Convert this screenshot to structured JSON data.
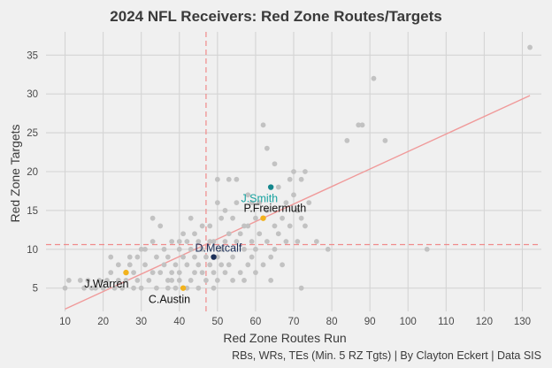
{
  "chart_data": {
    "type": "scatter",
    "title": "2024 NFL Receivers: Red Zone Routes/Targets",
    "xlabel": "Red Zone Routes Run",
    "ylabel": "Red Zone Targets",
    "caption": "RBs, WRs, TEs (Min. 5 RZ Tgts) | By Clayton Eckert | Data SIS",
    "xlim": [
      5,
      135
    ],
    "ylim": [
      2,
      38
    ],
    "xticks": [
      10,
      20,
      30,
      40,
      50,
      60,
      70,
      80,
      90,
      100,
      110,
      120,
      130
    ],
    "yticks": [
      5,
      10,
      15,
      20,
      25,
      30,
      35
    ],
    "grid": true,
    "colors": {
      "background": "#f0f0f0",
      "points": "#c2c2c2",
      "trend": "#f09a9a",
      "reference": "#f08a8a"
    },
    "reference_lines": {
      "x": 47,
      "y": 10.6
    },
    "trendline": {
      "x": [
        10,
        132
      ],
      "y": [
        2.3,
        29.8
      ]
    },
    "points": [
      [
        10,
        5
      ],
      [
        11,
        6
      ],
      [
        14,
        6
      ],
      [
        15,
        5
      ],
      [
        16,
        6
      ],
      [
        17,
        5
      ],
      [
        18,
        5
      ],
      [
        19,
        6
      ],
      [
        20,
        5
      ],
      [
        21,
        6
      ],
      [
        22,
        9
      ],
      [
        22,
        7
      ],
      [
        23,
        5
      ],
      [
        24,
        6
      ],
      [
        24,
        8
      ],
      [
        25,
        5
      ],
      [
        26,
        6
      ],
      [
        27,
        8
      ],
      [
        27,
        9
      ],
      [
        28,
        5
      ],
      [
        28,
        7
      ],
      [
        29,
        6
      ],
      [
        29,
        9
      ],
      [
        30,
        5
      ],
      [
        30,
        10
      ],
      [
        31,
        10
      ],
      [
        31,
        8
      ],
      [
        32,
        6
      ],
      [
        33,
        7
      ],
      [
        33,
        11
      ],
      [
        33,
        14
      ],
      [
        34,
        9
      ],
      [
        34,
        5
      ],
      [
        35,
        13
      ],
      [
        35,
        7
      ],
      [
        36,
        8
      ],
      [
        36,
        10
      ],
      [
        37,
        5
      ],
      [
        37,
        6
      ],
      [
        37,
        9
      ],
      [
        38,
        7
      ],
      [
        38,
        11
      ],
      [
        38,
        6
      ],
      [
        39,
        5
      ],
      [
        39,
        8
      ],
      [
        40,
        10
      ],
      [
        40,
        11
      ],
      [
        40,
        7
      ],
      [
        40,
        6
      ],
      [
        41,
        9
      ],
      [
        41,
        12
      ],
      [
        42,
        5
      ],
      [
        42,
        11
      ],
      [
        42,
        8
      ],
      [
        43,
        14
      ],
      [
        43,
        10
      ],
      [
        43,
        6
      ],
      [
        44,
        7
      ],
      [
        44,
        9
      ],
      [
        44,
        12
      ],
      [
        45,
        8
      ],
      [
        45,
        11
      ],
      [
        45,
        5
      ],
      [
        46,
        10
      ],
      [
        46,
        7
      ],
      [
        46,
        13
      ],
      [
        47,
        6
      ],
      [
        47,
        9
      ],
      [
        48,
        8
      ],
      [
        48,
        13
      ],
      [
        48,
        11
      ],
      [
        49,
        11
      ],
      [
        49,
        7
      ],
      [
        49,
        5
      ],
      [
        50,
        16
      ],
      [
        50,
        19
      ],
      [
        50,
        9
      ],
      [
        50,
        6
      ],
      [
        51,
        14
      ],
      [
        51,
        10
      ],
      [
        51,
        8
      ],
      [
        52,
        7
      ],
      [
        52,
        15
      ],
      [
        52,
        11
      ],
      [
        53,
        12
      ],
      [
        53,
        19
      ],
      [
        53,
        8
      ],
      [
        54,
        9
      ],
      [
        54,
        6
      ],
      [
        54,
        14
      ],
      [
        55,
        19
      ],
      [
        55,
        16
      ],
      [
        55,
        11
      ],
      [
        56,
        12
      ],
      [
        56,
        7
      ],
      [
        57,
        13
      ],
      [
        57,
        10
      ],
      [
        57,
        6
      ],
      [
        58,
        8
      ],
      [
        58,
        13
      ],
      [
        58,
        17
      ],
      [
        59,
        9
      ],
      [
        59,
        16
      ],
      [
        59,
        11
      ],
      [
        60,
        10
      ],
      [
        60,
        14
      ],
      [
        60,
        7
      ],
      [
        61,
        12
      ],
      [
        61,
        16
      ],
      [
        62,
        26
      ],
      [
        62,
        8
      ],
      [
        63,
        23
      ],
      [
        63,
        11
      ],
      [
        63,
        15
      ],
      [
        64,
        6
      ],
      [
        64,
        9
      ],
      [
        65,
        21
      ],
      [
        65,
        13
      ],
      [
        65,
        10
      ],
      [
        66,
        12
      ],
      [
        66,
        18
      ],
      [
        67,
        8
      ],
      [
        67,
        14
      ],
      [
        68,
        16
      ],
      [
        68,
        11
      ],
      [
        69,
        19
      ],
      [
        69,
        13
      ],
      [
        70,
        20
      ],
      [
        70,
        17
      ],
      [
        71,
        15
      ],
      [
        71,
        11
      ],
      [
        72,
        5
      ],
      [
        72,
        14
      ],
      [
        72,
        19
      ],
      [
        73,
        13
      ],
      [
        73,
        20
      ],
      [
        74,
        16
      ],
      [
        76,
        11
      ],
      [
        79,
        10
      ],
      [
        84,
        24
      ],
      [
        87,
        26
      ],
      [
        88,
        26
      ],
      [
        91,
        32
      ],
      [
        94,
        24
      ],
      [
        105,
        10
      ],
      [
        132,
        36
      ]
    ],
    "highlights": [
      {
        "name": "J.Smith",
        "x": 64,
        "y": 18,
        "color": "#14868c",
        "label_color": "#19a3a0",
        "label_pos": "below-left"
      },
      {
        "name": "P.Freiermuth",
        "x": 62,
        "y": 14,
        "color": "#f2b21c",
        "label_color": "#111111",
        "label_pos": "above-right"
      },
      {
        "name": "D.Metcalf",
        "x": 49,
        "y": 9,
        "color": "#1c2f58",
        "label_color": "#1c2f58",
        "label_pos": "above-right"
      },
      {
        "name": "J.Warren",
        "x": 26,
        "y": 7,
        "color": "#f2b21c",
        "label_color": "#111111",
        "label_pos": "below-left"
      },
      {
        "name": "C.Austin",
        "x": 41,
        "y": 5,
        "color": "#f2b21c",
        "label_color": "#111111",
        "label_pos": "below-left"
      }
    ]
  }
}
